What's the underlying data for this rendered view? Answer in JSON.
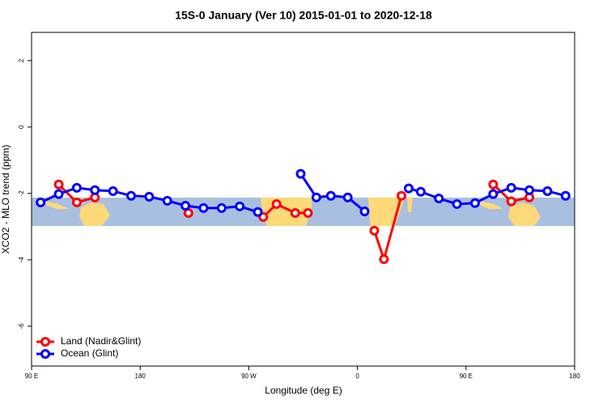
{
  "chart_data": {
    "type": "line",
    "title": "15S-0 January (Ver 10)   2015-01-01 to 2020-12-18",
    "x_label": "Longitude (deg E)",
    "y_label": "XCO2 - MLO trend (ppm)",
    "xlim": [
      90,
      540
    ],
    "ylim": [
      -7.2,
      2.85
    ],
    "xticks": [
      {
        "value": 90,
        "label": "90 E"
      },
      180,
      {
        "value": 270,
        "label": "90 W"
      },
      {
        "value": 360,
        "label": "0"
      },
      {
        "value": 450,
        "label": "90 E"
      },
      {
        "value": 540,
        "label": "180"
      }
    ],
    "yticks": [
      -6,
      -4,
      -2,
      0,
      2
    ],
    "legend": "bottom-left",
    "series": [
      {
        "name": "Land (Nadir&Glint)",
        "color": "#ff0000",
        "x": [
          112.5,
          127.5,
          142.5,
          null,
          220,
          null,
          282,
          293,
          308.5,
          319,
          null,
          374,
          382,
          396.5,
          null,
          472.5,
          487.5,
          502.5
        ],
        "values": [
          -1.73,
          -2.27,
          -2.12,
          null,
          -2.59,
          null,
          -2.71,
          -2.32,
          -2.59,
          -2.59,
          null,
          -3.12,
          -3.98,
          -2.07,
          null,
          -1.73,
          -2.24,
          -2.12
        ]
      },
      {
        "name": "Ocean (Glint)",
        "color": "#0000ff",
        "x": [
          97.5,
          112.5,
          127.5,
          142.5,
          157.5,
          172.5,
          187.5,
          202.5,
          217.5,
          232.5,
          247.5,
          262.5,
          277.5,
          null,
          313,
          326,
          338,
          352,
          366,
          null,
          402.5,
          412.5,
          427.5,
          442.5,
          457.5,
          472.5,
          487.5,
          502.5,
          517.5,
          532.5
        ],
        "values": [
          -2.27,
          -2.02,
          -1.83,
          -1.9,
          -1.93,
          -2.07,
          -2.1,
          -2.22,
          -2.37,
          -2.44,
          -2.44,
          -2.39,
          -2.56,
          null,
          -1.41,
          -2.12,
          -2.07,
          -2.12,
          -2.54,
          null,
          -1.85,
          -1.95,
          -2.15,
          -2.32,
          -2.29,
          -2.02,
          -1.83,
          -1.9,
          -1.93,
          -2.07
        ]
      }
    ]
  }
}
